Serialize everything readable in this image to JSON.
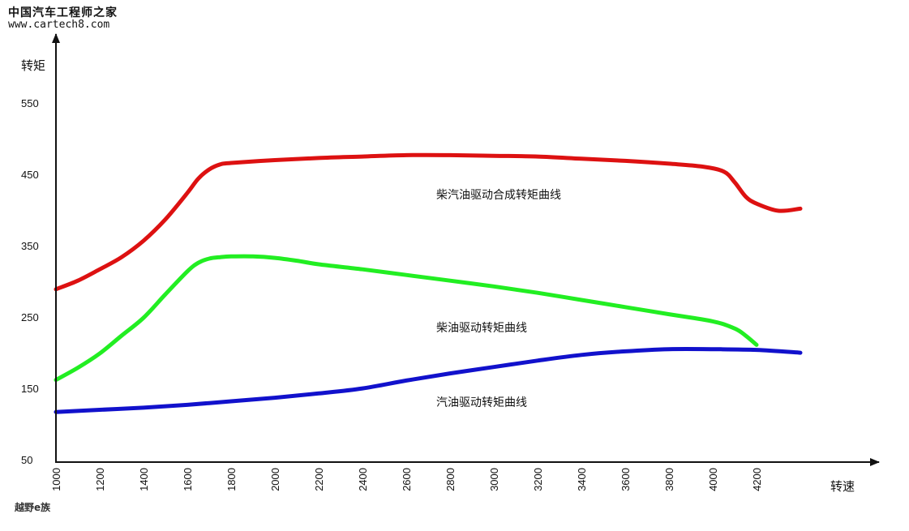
{
  "watermark": {
    "site_name": "中国汽车工程师之家",
    "url": "www.cartech8.com"
  },
  "footer_mark": "越野e族",
  "chart_data": {
    "type": "line",
    "title": "",
    "xlabel": "转速",
    "ylabel": "转矩",
    "x_ticks": [
      1000,
      1200,
      1400,
      1600,
      1800,
      2000,
      2200,
      2400,
      2600,
      2800,
      3000,
      3200,
      3400,
      3600,
      3800,
      4000,
      4200
    ],
    "y_ticks": [
      50,
      150,
      250,
      350,
      450,
      550
    ],
    "xlim": [
      1000,
      4700
    ],
    "ylim": [
      50,
      600
    ],
    "grid": false,
    "series": [
      {
        "name": "柴汽油驱动合成转矩曲线",
        "color": "#dd1111",
        "x": [
          1000,
          1100,
          1200,
          1300,
          1400,
          1500,
          1600,
          1650,
          1700,
          1750,
          1800,
          2000,
          2200,
          2400,
          2600,
          2800,
          3000,
          3200,
          3400,
          3600,
          3800,
          3950,
          4050,
          4100,
          4150,
          4200,
          4300,
          4400
        ],
        "y": [
          290,
          302,
          318,
          335,
          358,
          388,
          425,
          445,
          458,
          465,
          467,
          471,
          474,
          476,
          478,
          478,
          477,
          476,
          473,
          470,
          466,
          462,
          455,
          440,
          420,
          410,
          400,
          403
        ]
      },
      {
        "name": "柴油驱动转矩曲线",
        "color": "#22ee22",
        "x": [
          1000,
          1100,
          1200,
          1300,
          1400,
          1500,
          1600,
          1650,
          1700,
          1750,
          1800,
          1900,
          2000,
          2100,
          2200,
          2400,
          2600,
          2800,
          3000,
          3200,
          3400,
          3600,
          3800,
          4000,
          4100,
          4150,
          4200
        ],
        "y": [
          163,
          180,
          200,
          225,
          250,
          283,
          315,
          327,
          333,
          335,
          336,
          336,
          334,
          330,
          325,
          318,
          310,
          302,
          294,
          285,
          275,
          265,
          255,
          245,
          235,
          225,
          212
        ]
      },
      {
        "name": "汽油驱动转矩曲线",
        "color": "#1111cc",
        "x": [
          1000,
          1200,
          1400,
          1600,
          1800,
          2000,
          2200,
          2400,
          2600,
          2800,
          3000,
          3200,
          3400,
          3600,
          3800,
          4000,
          4200,
          4400
        ],
        "y": [
          118,
          121,
          124,
          128,
          133,
          138,
          144,
          151,
          162,
          172,
          181,
          190,
          198,
          203,
          206,
          206,
          205,
          201
        ]
      }
    ]
  }
}
